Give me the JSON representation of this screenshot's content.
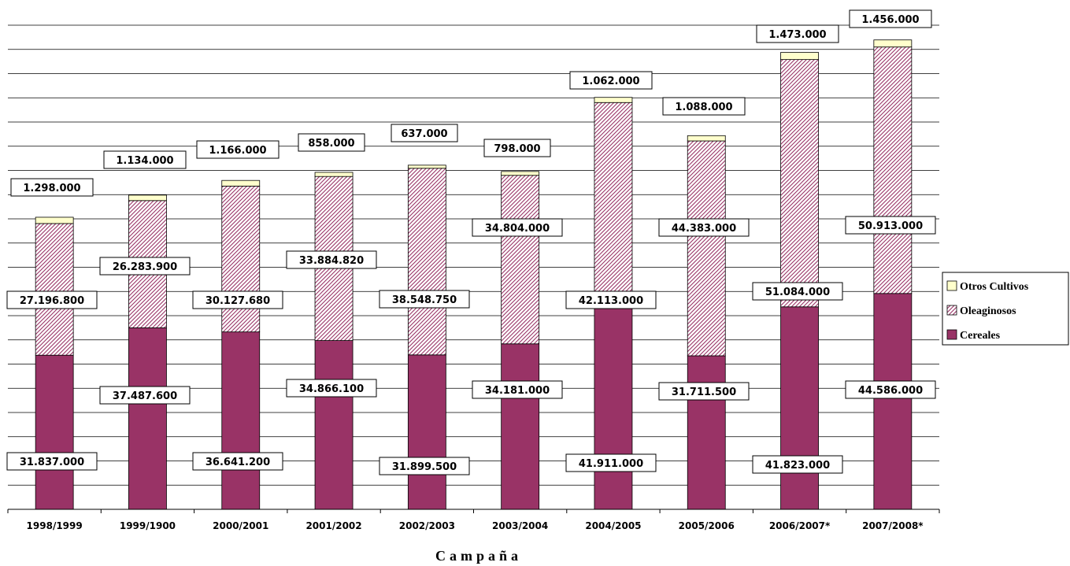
{
  "chart_data": {
    "type": "bar",
    "stacked": true,
    "categories": [
      "1998/1999",
      "1999/1900",
      "2000/2001",
      "2001/2002",
      "2002/2003",
      "2003/2004",
      "2004/2005",
      "2005/2006",
      "2006/2007*",
      "2007/2008*"
    ],
    "series": [
      {
        "name": "Cereales",
        "color": "#993366",
        "pattern": "solid",
        "values": [
          31837000,
          37487600,
          36641200,
          34866100,
          31899500,
          34181000,
          41911000,
          31711500,
          41823000,
          44586000
        ],
        "labels": [
          "31.837.000",
          "37.487.600",
          "36.641.200",
          "34.866.100",
          "31.899.500",
          "34.181.000",
          "41.911.000",
          "31.711.500",
          "41.823.000",
          "44.586.000"
        ]
      },
      {
        "name": "Oleaginosos",
        "color": "#993366",
        "pattern": "diagonal-hatch",
        "values": [
          27196800,
          26283900,
          30127680,
          33884820,
          38548750,
          34804000,
          42113000,
          44383000,
          51084000,
          50913000
        ],
        "labels": [
          "27.196.800",
          "26.283.900",
          "30.127.680",
          "33.884.820",
          "38.548.750",
          "34.804.000",
          "42.113.000",
          "44.383.000",
          "51.084.000",
          "50.913.000"
        ]
      },
      {
        "name": "Otros Cultivos",
        "color": "#FFFFCC",
        "pattern": "solid",
        "values": [
          1298000,
          1134000,
          1166000,
          858000,
          637000,
          798000,
          1062000,
          1088000,
          1473000,
          1456000
        ],
        "labels": [
          "1.298.000",
          "1.134.000",
          "1.166.000",
          "858.000",
          "637.000",
          "798.000",
          "1.062.000",
          "1.088.000",
          "1.473.000",
          "1.456.000"
        ]
      }
    ],
    "xlabel": "Campaña",
    "ylabel": "",
    "ylim": [
      0,
      100000000
    ],
    "grid": true,
    "legend": "right"
  }
}
